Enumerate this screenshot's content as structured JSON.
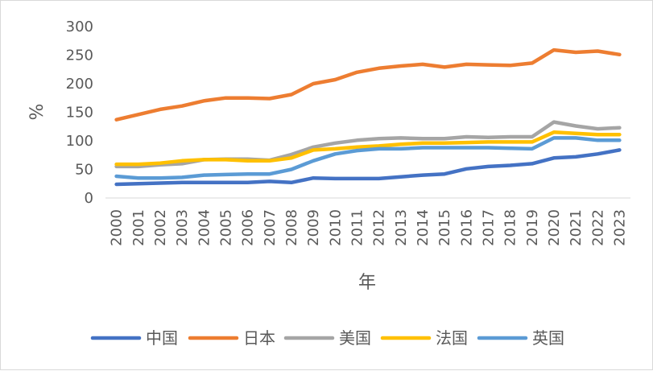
{
  "chart_data": {
    "type": "line",
    "title": "",
    "xlabel": "年",
    "ylabel": "%",
    "ylim": [
      0,
      300
    ],
    "yticks": [
      0,
      50,
      100,
      150,
      200,
      250,
      300
    ],
    "grid": false,
    "legend_position": "bottom",
    "x": [
      "2000",
      "2001",
      "2002",
      "2003",
      "2004",
      "2005",
      "2006",
      "2007",
      "2008",
      "2009",
      "2010",
      "2011",
      "2012",
      "2013",
      "2014",
      "2015",
      "2016",
      "2017",
      "2018",
      "2019",
      "2020",
      "2021",
      "2022",
      "2023"
    ],
    "series": [
      {
        "name": "中国",
        "color": "#4472c4",
        "values": [
          24,
          25,
          26,
          27,
          27,
          27,
          27,
          29,
          27,
          35,
          34,
          34,
          34,
          37,
          40,
          42,
          51,
          55,
          57,
          60,
          70,
          72,
          77,
          84
        ]
      },
      {
        "name": "日本",
        "color": "#ed7d31",
        "values": [
          137,
          146,
          155,
          161,
          170,
          175,
          175,
          174,
          181,
          200,
          207,
          220,
          227,
          231,
          234,
          229,
          234,
          233,
          232,
          236,
          259,
          255,
          257,
          251
        ]
      },
      {
        "name": "美国",
        "color": "#a5a5a5",
        "values": [
          55,
          55,
          58,
          60,
          67,
          68,
          68,
          66,
          76,
          89,
          96,
          101,
          104,
          105,
          104,
          104,
          107,
          106,
          107,
          107,
          133,
          126,
          121,
          123
        ]
      },
      {
        "name": "法国",
        "color": "#ffc000",
        "values": [
          59,
          59,
          61,
          65,
          67,
          67,
          65,
          65,
          70,
          84,
          86,
          89,
          91,
          94,
          96,
          96,
          97,
          98,
          98,
          98,
          115,
          113,
          111,
          111
        ]
      },
      {
        "name": "英国",
        "color": "#5b9bd5",
        "values": [
          38,
          35,
          35,
          36,
          40,
          41,
          42,
          42,
          50,
          65,
          77,
          83,
          86,
          86,
          88,
          88,
          88,
          88,
          87,
          86,
          105,
          105,
          101,
          101
        ]
      }
    ]
  }
}
